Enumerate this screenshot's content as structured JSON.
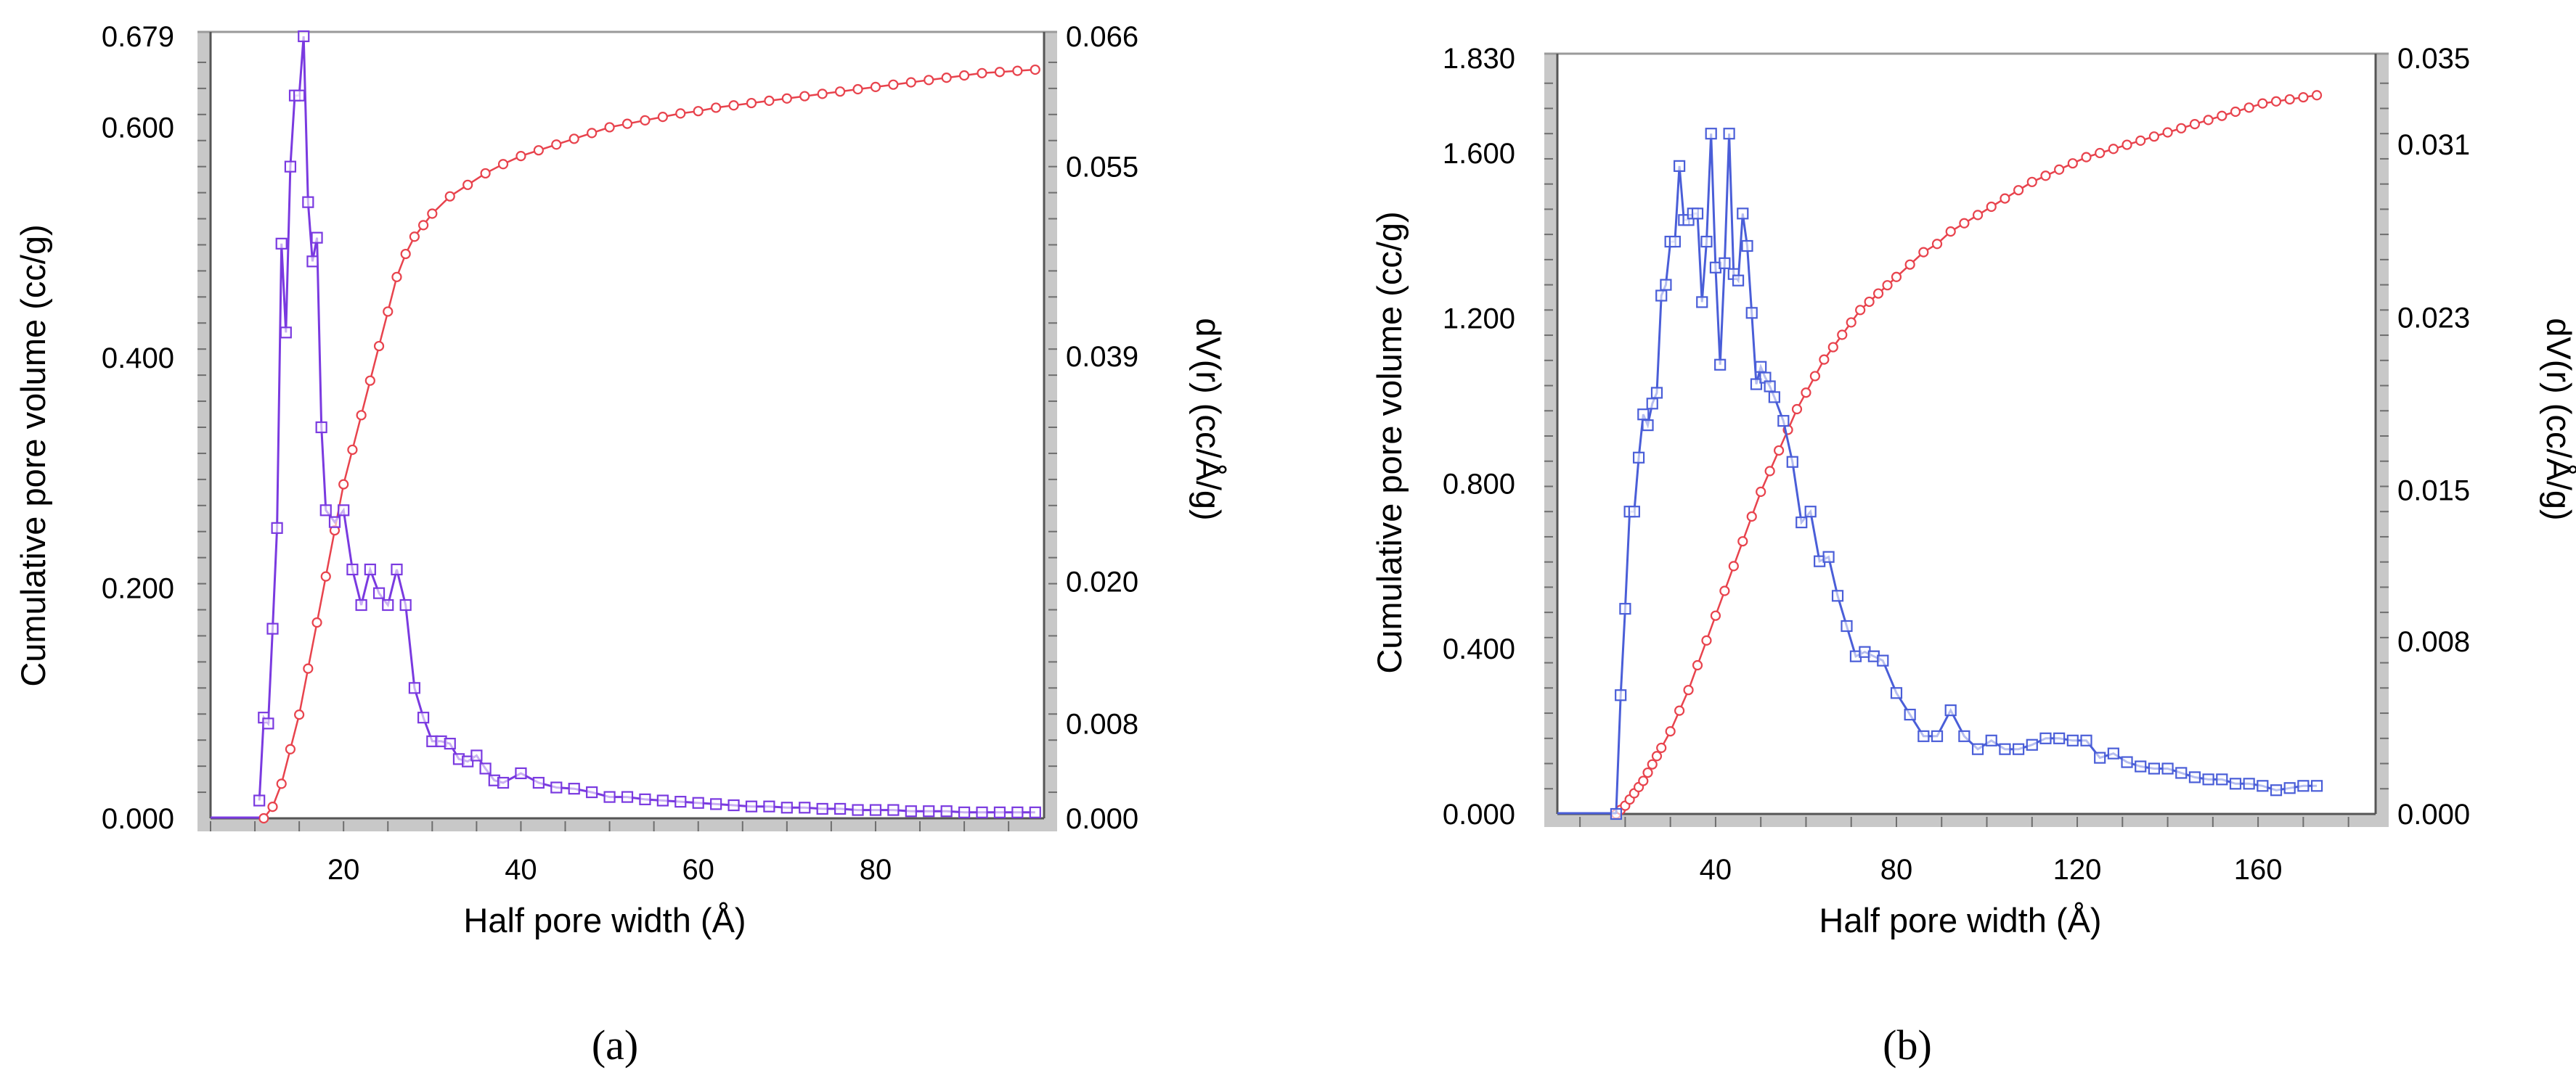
{
  "figure": {
    "panel_labels": {
      "a": "(a)",
      "b": "(b)"
    }
  },
  "colors": {
    "cumulative": "#e8434d",
    "differential_a": "#7a3ae0",
    "differential_b": "#4a5ed8",
    "frame_band": "#c8c8c8",
    "frame_tick": "#6e6e6e"
  },
  "chart_data": [
    {
      "type": "line",
      "panel": "(a)",
      "xlabel": "Half pore width (Å)",
      "ylabel": "Cumulative pore volume (cc/g)",
      "y2label": "dV(r) (cc/Å/g)",
      "xlim": [
        5,
        99
      ],
      "ylim": [
        0,
        0.679
      ],
      "y2lim": [
        0,
        0.066
      ],
      "x_ticks": [
        20,
        40,
        60,
        80
      ],
      "y_ticks": [
        "0.000",
        "0.200",
        "0.400",
        "0.600",
        "0.679"
      ],
      "y2_ticks": [
        "0.000",
        "0.008",
        "0.020",
        "0.039",
        "0.055",
        "0.066"
      ],
      "series": [
        {
          "name": "Cumulative pore volume",
          "axis": "left",
          "marker": "circle",
          "x": [
            11,
            12,
            13,
            14,
            15,
            16,
            17,
            18,
            19,
            20,
            21,
            22,
            23,
            24,
            25,
            26,
            27,
            28,
            29,
            30,
            32,
            34,
            36,
            38,
            40,
            42,
            44,
            46,
            48,
            50,
            52,
            54,
            56,
            58,
            60,
            62,
            64,
            66,
            68,
            70,
            72,
            74,
            76,
            78,
            80,
            82,
            84,
            86,
            88,
            90,
            92,
            94,
            96,
            98
          ],
          "values": [
            0.0,
            0.01,
            0.03,
            0.06,
            0.09,
            0.13,
            0.17,
            0.21,
            0.25,
            0.29,
            0.32,
            0.35,
            0.38,
            0.41,
            0.44,
            0.47,
            0.49,
            0.505,
            0.515,
            0.525,
            0.54,
            0.55,
            0.56,
            0.568,
            0.575,
            0.58,
            0.585,
            0.59,
            0.595,
            0.6,
            0.603,
            0.606,
            0.609,
            0.612,
            0.614,
            0.617,
            0.619,
            0.621,
            0.623,
            0.625,
            0.627,
            0.629,
            0.631,
            0.633,
            0.635,
            0.637,
            0.639,
            0.641,
            0.643,
            0.645,
            0.647,
            0.648,
            0.649,
            0.65
          ]
        },
        {
          "name": "dV(r)",
          "axis": "right",
          "marker": "square",
          "x": [
            10.5,
            11,
            11.5,
            12,
            12.5,
            13,
            13.5,
            14,
            14.5,
            15,
            15.5,
            16,
            16.5,
            17,
            17.5,
            18,
            19,
            20,
            21,
            22,
            23,
            24,
            25,
            26,
            27,
            28,
            29,
            30,
            31,
            32,
            33,
            34,
            35,
            36,
            37,
            38,
            40,
            42,
            44,
            46,
            48,
            50,
            52,
            54,
            56,
            58,
            60,
            62,
            64,
            66,
            68,
            70,
            72,
            74,
            76,
            78,
            80,
            82,
            84,
            86,
            88,
            90,
            92,
            94,
            96,
            98
          ],
          "values": [
            0.0015,
            0.0085,
            0.008,
            0.016,
            0.0245,
            0.0485,
            0.041,
            0.055,
            0.061,
            0.061,
            0.066,
            0.052,
            0.047,
            0.049,
            0.033,
            0.026,
            0.025,
            0.026,
            0.021,
            0.018,
            0.021,
            0.019,
            0.018,
            0.021,
            0.018,
            0.011,
            0.0085,
            0.0065,
            0.0065,
            0.0063,
            0.005,
            0.0048,
            0.0053,
            0.0042,
            0.0032,
            0.003,
            0.0038,
            0.003,
            0.0026,
            0.0025,
            0.0022,
            0.0018,
            0.0018,
            0.0016,
            0.0015,
            0.0014,
            0.0013,
            0.0012,
            0.0011,
            0.001,
            0.001,
            0.0009,
            0.0009,
            0.0008,
            0.0008,
            0.0007,
            0.0007,
            0.0007,
            0.0006,
            0.0006,
            0.0006,
            0.0005,
            0.0005,
            0.0005,
            0.0005,
            0.0005
          ]
        }
      ]
    },
    {
      "type": "line",
      "panel": "(b)",
      "xlabel": "Half pore width (Å)",
      "ylabel": "Cumulative pore volume (cc/g)",
      "y2label": "dV(r) (cc/Å/g)",
      "xlim": [
        5,
        186
      ],
      "ylim": [
        0,
        1.83
      ],
      "y2lim": [
        0,
        0.035
      ],
      "x_ticks": [
        40,
        80,
        120,
        160
      ],
      "y_ticks": [
        "0.000",
        "0.400",
        "0.800",
        "1.200",
        "1.600",
        "1.830"
      ],
      "y2_ticks": [
        "0.000",
        "0.008",
        "0.015",
        "0.023",
        "0.031",
        "0.035"
      ],
      "series": [
        {
          "name": "Cumulative pore volume",
          "axis": "left",
          "marker": "circle",
          "x": [
            18,
            19,
            20,
            21,
            22,
            23,
            24,
            25,
            26,
            27,
            28,
            30,
            32,
            34,
            36,
            38,
            40,
            42,
            44,
            46,
            48,
            50,
            52,
            54,
            56,
            58,
            60,
            62,
            64,
            66,
            68,
            70,
            72,
            74,
            76,
            78,
            80,
            83,
            86,
            89,
            92,
            95,
            98,
            101,
            104,
            107,
            110,
            113,
            116,
            119,
            122,
            125,
            128,
            131,
            134,
            137,
            140,
            143,
            146,
            149,
            152,
            155,
            158,
            161,
            164,
            167,
            170,
            173
          ],
          "values": [
            0.0,
            0.01,
            0.02,
            0.035,
            0.05,
            0.065,
            0.08,
            0.1,
            0.12,
            0.14,
            0.16,
            0.2,
            0.25,
            0.3,
            0.36,
            0.42,
            0.48,
            0.54,
            0.6,
            0.66,
            0.72,
            0.78,
            0.83,
            0.88,
            0.93,
            0.98,
            1.02,
            1.06,
            1.1,
            1.13,
            1.16,
            1.19,
            1.22,
            1.24,
            1.26,
            1.28,
            1.3,
            1.33,
            1.36,
            1.38,
            1.41,
            1.43,
            1.45,
            1.47,
            1.49,
            1.51,
            1.53,
            1.545,
            1.56,
            1.575,
            1.59,
            1.6,
            1.61,
            1.62,
            1.63,
            1.64,
            1.65,
            1.66,
            1.67,
            1.68,
            1.69,
            1.7,
            1.71,
            1.72,
            1.725,
            1.73,
            1.735,
            1.74
          ]
        },
        {
          "name": "dV(r)",
          "axis": "right",
          "marker": "square",
          "x": [
            18,
            19,
            20,
            21,
            22,
            23,
            24,
            25,
            26,
            27,
            28,
            29,
            30,
            31,
            32,
            33,
            34,
            35,
            36,
            37,
            38,
            39,
            40,
            41,
            42,
            43,
            44,
            45,
            46,
            47,
            48,
            49,
            50,
            51,
            52,
            53,
            55,
            57,
            59,
            61,
            63,
            65,
            67,
            69,
            71,
            73,
            75,
            77,
            80,
            83,
            86,
            89,
            92,
            95,
            98,
            101,
            104,
            107,
            110,
            113,
            116,
            119,
            122,
            125,
            128,
            131,
            134,
            137,
            140,
            143,
            146,
            149,
            152,
            155,
            158,
            161,
            164,
            167,
            170,
            173
          ],
          "values": [
            0.0,
            0.0055,
            0.0095,
            0.014,
            0.014,
            0.0165,
            0.0185,
            0.018,
            0.019,
            0.0195,
            0.024,
            0.0245,
            0.0265,
            0.0265,
            0.03,
            0.0275,
            0.0275,
            0.0278,
            0.0278,
            0.0237,
            0.0265,
            0.0315,
            0.0253,
            0.0208,
            0.0255,
            0.0315,
            0.025,
            0.0247,
            0.0278,
            0.0263,
            0.0232,
            0.0199,
            0.0207,
            0.0202,
            0.0198,
            0.0193,
            0.0182,
            0.0163,
            0.0135,
            0.014,
            0.0117,
            0.0119,
            0.0101,
            0.0087,
            0.0073,
            0.0075,
            0.0073,
            0.0071,
            0.0056,
            0.0046,
            0.0036,
            0.0036,
            0.0048,
            0.0036,
            0.003,
            0.0034,
            0.003,
            0.003,
            0.0032,
            0.0035,
            0.0035,
            0.0034,
            0.0034,
            0.0026,
            0.0028,
            0.0024,
            0.0022,
            0.0021,
            0.0021,
            0.0019,
            0.0017,
            0.0016,
            0.0016,
            0.0014,
            0.0014,
            0.0013,
            0.0011,
            0.0012,
            0.0013,
            0.0013
          ]
        }
      ]
    }
  ]
}
